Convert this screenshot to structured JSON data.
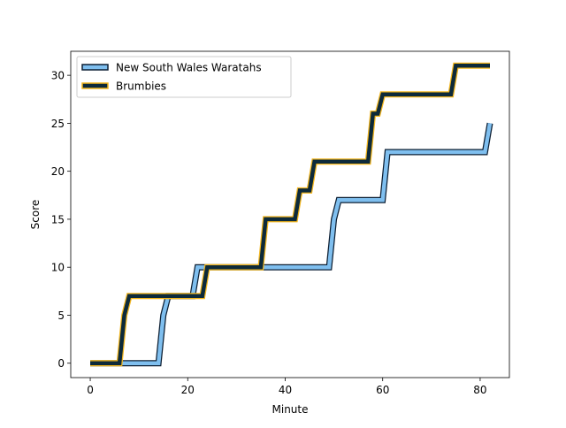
{
  "chart_data": {
    "type": "line",
    "xlabel": "Minute",
    "ylabel": "Score",
    "xlim": [
      -4,
      86
    ],
    "ylim": [
      -1.5,
      32.5
    ],
    "xticks": [
      0,
      20,
      40,
      60,
      80
    ],
    "yticks": [
      0,
      5,
      10,
      15,
      20,
      25,
      30
    ],
    "grid": false,
    "legend": "upper-left",
    "series": [
      {
        "name": "New South Wales Waratahs",
        "color": "#7fbfef",
        "edge_color": "#0d1f33",
        "x": [
          0,
          14,
          15,
          16,
          21,
          22,
          49,
          50,
          51,
          60,
          61,
          81,
          82
        ],
        "y": [
          0,
          0,
          5,
          7,
          7,
          10,
          10,
          15,
          17,
          17,
          22,
          22,
          25
        ]
      },
      {
        "name": "Brumbies",
        "color": "#0d2a3a",
        "edge_color": "#f2b51d",
        "x": [
          0,
          6,
          7,
          8,
          23,
          24,
          35,
          36,
          42,
          43,
          45,
          46,
          57,
          58,
          59,
          60,
          74,
          75,
          82
        ],
        "y": [
          0,
          0,
          5,
          7,
          7,
          10,
          10,
          15,
          15,
          18,
          18,
          21,
          21,
          26,
          26,
          28,
          28,
          31,
          31
        ]
      }
    ]
  }
}
